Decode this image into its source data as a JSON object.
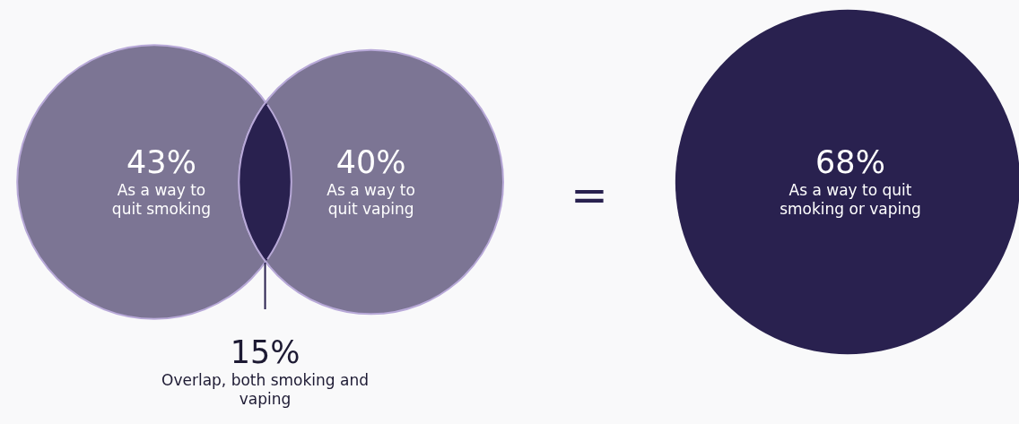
{
  "chart_data": {
    "type": "other",
    "categories": [
      "As a way to quit smoking",
      "As a way to quit vaping",
      "Overlap, both smoking and vaping",
      "As a way to quit smoking or vaping"
    ],
    "values": [
      43,
      40,
      15,
      68
    ],
    "value_labels": [
      "43%",
      "40%",
      "15%",
      "68%"
    ],
    "colors": [
      "#7c7594",
      "#7c7594",
      "#29214f",
      "#29214f"
    ],
    "annotations": [
      "="
    ]
  }
}
